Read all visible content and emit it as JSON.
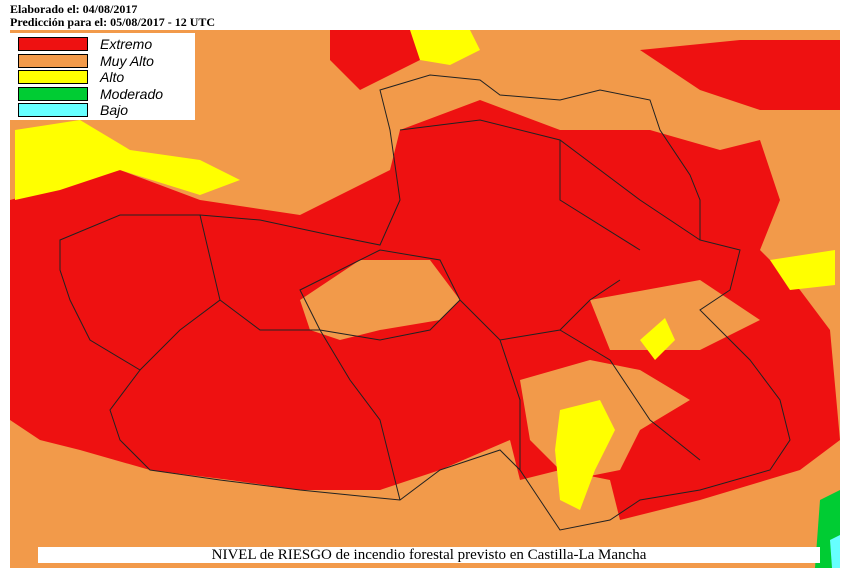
{
  "header": {
    "elaborated": "Elaborado el: 04/08/2017",
    "forecast": "Predicción para el: 05/08/2017 - 12 UTC"
  },
  "legend": {
    "items": [
      {
        "label": "Extremo",
        "color": "#ee1111"
      },
      {
        "label": "Muy Alto",
        "color": "#f29a4a"
      },
      {
        "label": "Alto",
        "color": "#ffff00"
      },
      {
        "label": "Moderado",
        "color": "#00cc33"
      },
      {
        "label": "Bajo",
        "color": "#66ffff"
      }
    ]
  },
  "caption": "NIVEL de RIESGO de incendio forestal previsto en Castilla-La Mancha"
}
